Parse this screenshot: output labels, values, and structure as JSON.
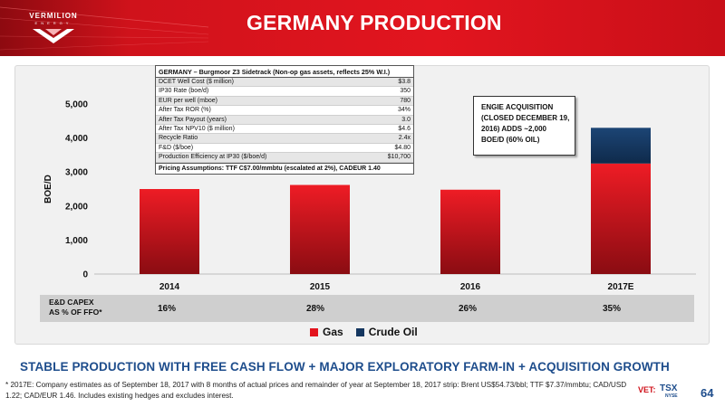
{
  "header": {
    "logo_name": "VERMILION",
    "logo_sub": "ENERGY",
    "title": "GERMANY PRODUCTION"
  },
  "colors": {
    "brand_red": "#d0121b",
    "gas": "#e3131d",
    "crude_oil": "#14365f",
    "banner_blue": "#1e4d8c"
  },
  "table": {
    "title": "GERMANY – Burgmoor Z3 Sidetrack  (Non-op gas assets, reflects 25% W.I.)",
    "rows": [
      {
        "label": "DCET Well Cost ($ million)",
        "value": "$3.8"
      },
      {
        "label": "IP30 Rate (boe/d)",
        "value": "350"
      },
      {
        "label": "EUR per well (mboe)",
        "value": "780"
      },
      {
        "label": "After Tax ROR (%)",
        "value": "34%"
      },
      {
        "label": "After Tax Payout (years)",
        "value": "3.0"
      },
      {
        "label": "After Tax NPV10 ($ million)",
        "value": "$4.6"
      },
      {
        "label": "Recycle Ratio",
        "value": "2.4x"
      },
      {
        "label": "F&D ($/boe)",
        "value": "$4.80"
      },
      {
        "label": "Production Efficiency at IP30 ($/boe/d)",
        "value": "$10,700"
      }
    ],
    "footer": "Pricing Assumptions: TTF C$7.00/mmbtu (escalated at 2%), CADEUR 1.40"
  },
  "callout": {
    "text": "ENGIE ACQUISITION (CLOSED DECEMBER 19, 2016) ADDS ~2,000 BOE/D (60% OIL)"
  },
  "capex": {
    "label": "E&D CAPEX\nAS % OF FFO*",
    "values": [
      "16%",
      "28%",
      "26%",
      "35%"
    ]
  },
  "chart_data": {
    "type": "bar",
    "stacked": true,
    "categories": [
      "2014",
      "2015",
      "2016",
      "2017E"
    ],
    "series": [
      {
        "name": "Gas",
        "values": [
          2500,
          2620,
          2480,
          3250
        ]
      },
      {
        "name": "Crude Oil",
        "values": [
          0,
          0,
          0,
          1050
        ]
      }
    ],
    "ylabel": "BOE/D",
    "ylim": [
      0,
      5000
    ],
    "yticks": [
      0,
      1000,
      2000,
      3000,
      4000,
      5000
    ],
    "ytick_labels": [
      "0",
      "1,000",
      "2,000",
      "3,000",
      "4,000",
      "5,000"
    ],
    "grid": false,
    "legend_position": "bottom"
  },
  "legend": {
    "gas_label": "Gas",
    "oil_label": "Crude Oil"
  },
  "footer": {
    "banner": "STABLE PRODUCTION WITH FREE CASH FLOW + MAJOR EXPLORATORY FARM-IN + ACQUISITION GROWTH",
    "footnote": "* 2017E: Company estimates as of September 18, 2017 with 8 months of actual prices and remainder of year at September 18, 2017 strip: Brent US$54.73/bbl; TTF $7.37/mmbtu; CAD/USD 1.22; CAD/EUR 1.46. Includes existing hedges and excludes interest.",
    "ticker_vet": "VET:",
    "ticker_tsx": "TSX",
    "ticker_nyse": "NYSE",
    "page_number": "64"
  }
}
